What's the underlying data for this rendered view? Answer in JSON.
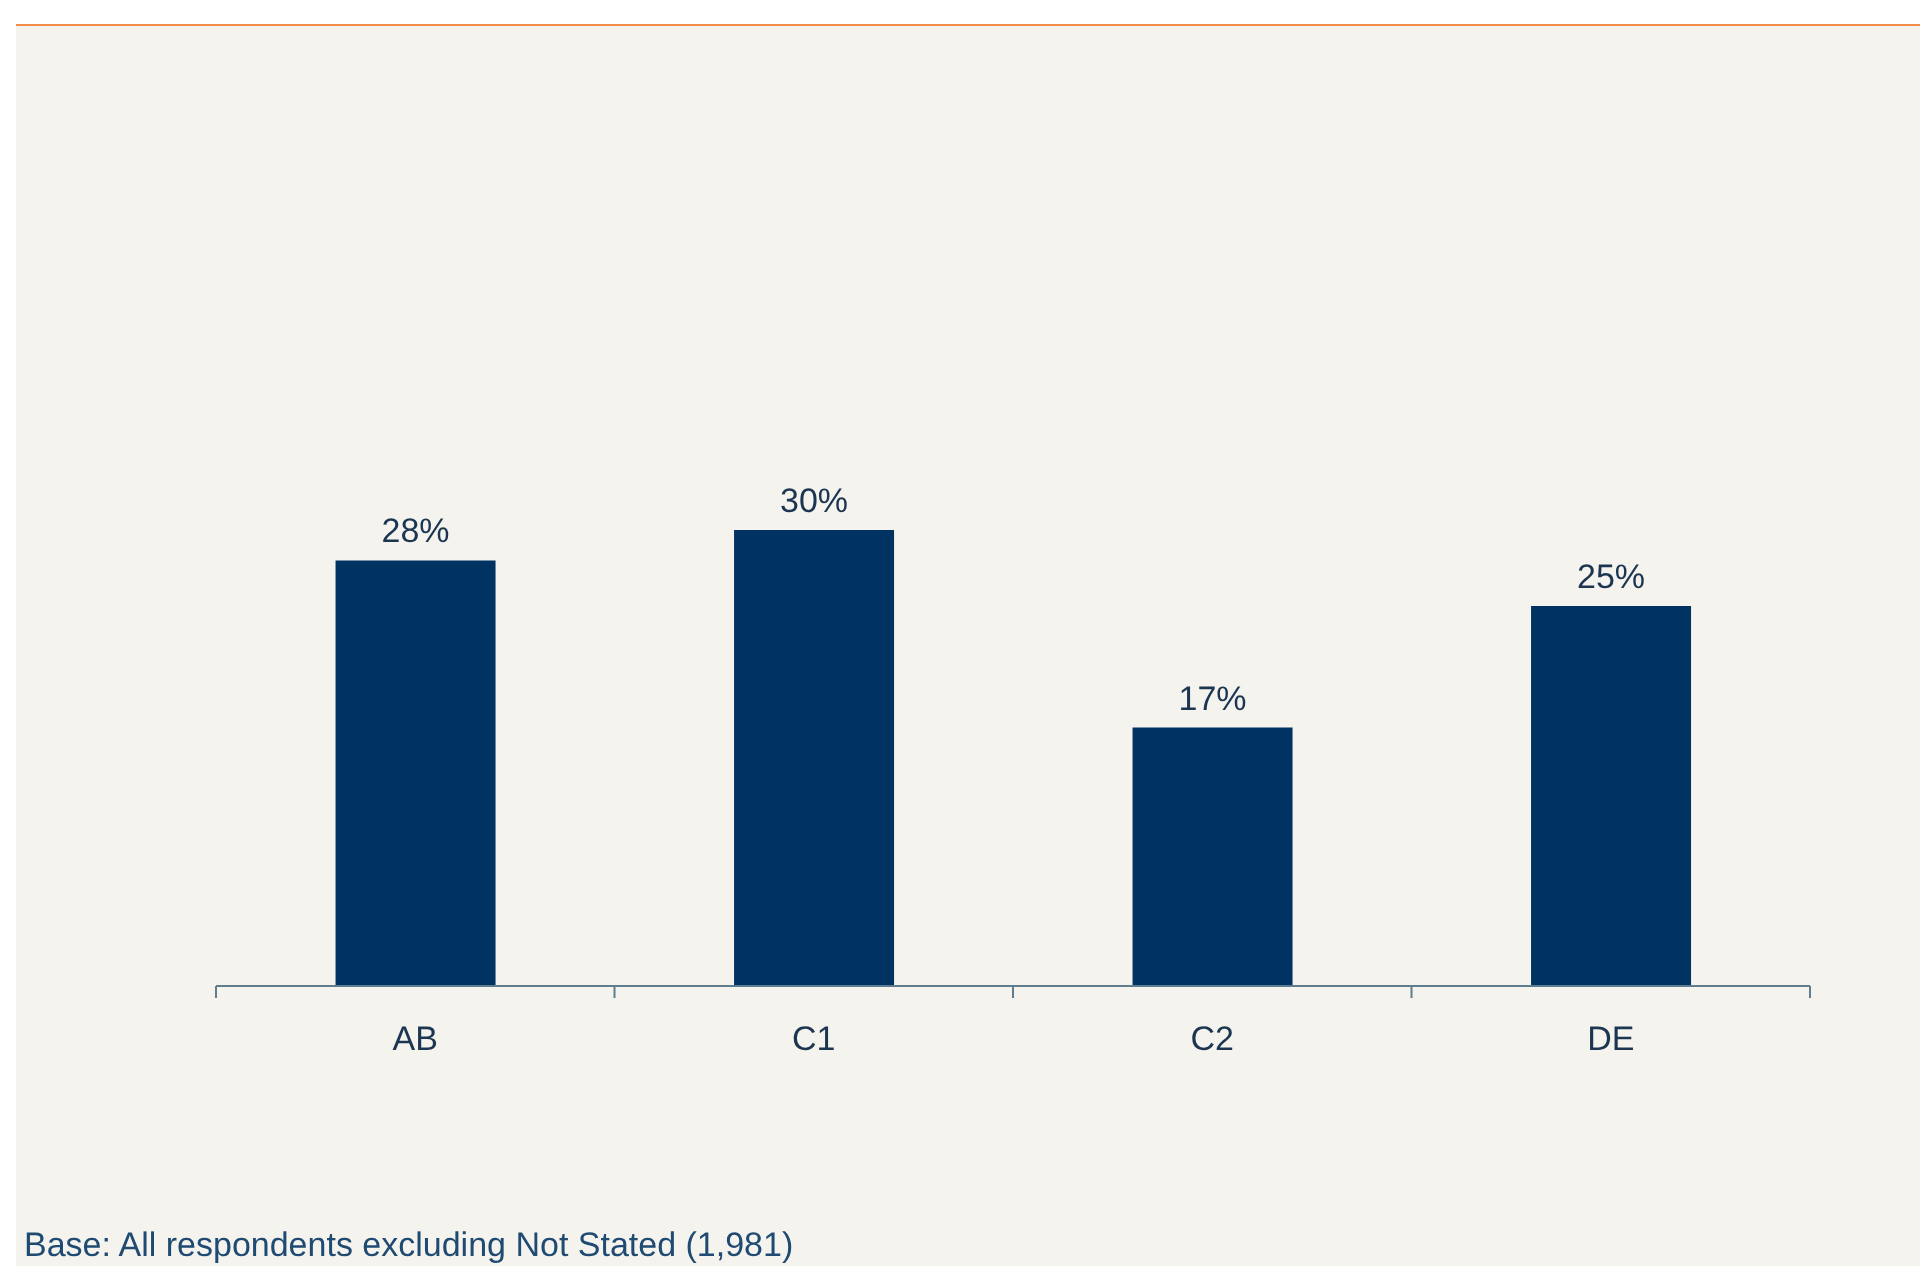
{
  "chart_data": {
    "type": "bar",
    "categories": [
      "AB",
      "C1",
      "C2",
      "DE"
    ],
    "values": [
      28,
      30,
      17,
      25
    ],
    "color": "#003361",
    "value_labels": [
      "28%",
      "30%",
      "17%",
      "25%"
    ],
    "annotations": [
      "Base: All respondents excluding Not Stated (1,981)"
    ]
  }
}
